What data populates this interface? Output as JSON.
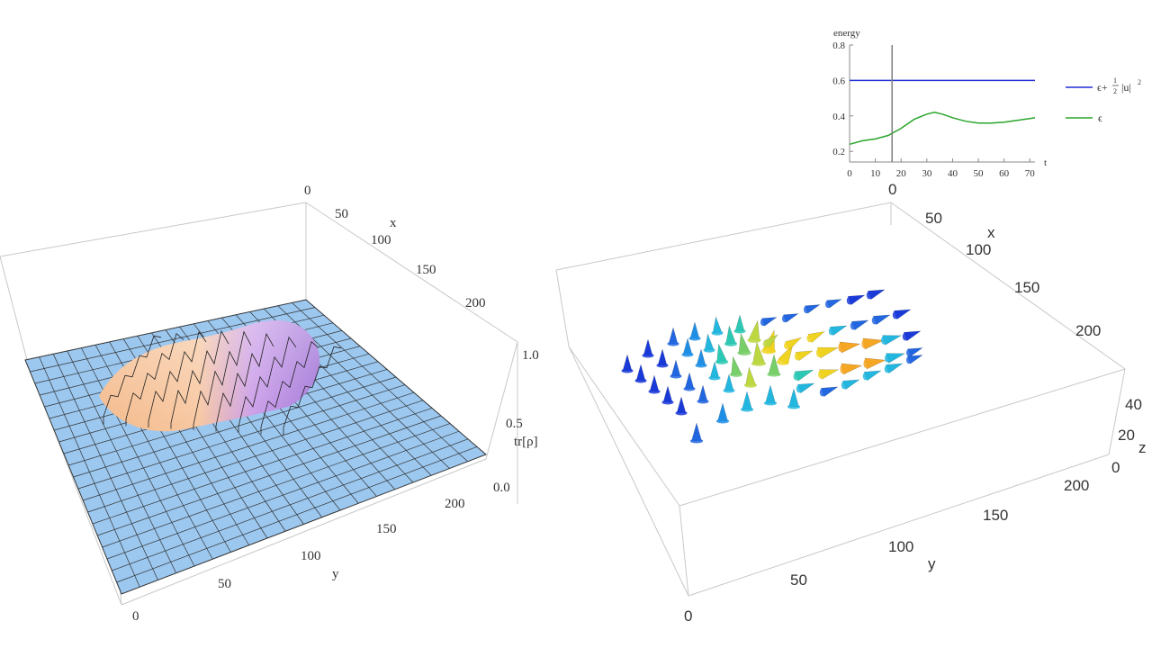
{
  "colors": {
    "total_energy": "#1f2bd6",
    "internal_energy": "#2aa52a",
    "time_marker": "#808080",
    "surface": "#9cc8f0",
    "box": "#c8c8c8"
  },
  "chart_data": [
    {
      "type": "line",
      "ylabel": "energy",
      "xlabel": "t",
      "xlim": [
        0,
        72
      ],
      "ylim": [
        0.14,
        0.8
      ],
      "x_ticks": [
        "0",
        "10",
        "20",
        "30",
        "40",
        "50",
        "60",
        "70"
      ],
      "y_ticks": [
        "0.2",
        "0.4",
        "0.6",
        "0.8"
      ],
      "marker_t": 16.5,
      "legend_position": "right",
      "series": [
        {
          "name": "ϵ+½|u|²",
          "legend_main": "ϵ+",
          "legend_frac": "1 2",
          "legend_tail": "|u|",
          "legend_sup": "2",
          "x": [
            0,
            72
          ],
          "values": [
            0.6,
            0.6
          ]
        },
        {
          "name": "ϵ",
          "x": [
            0,
            5,
            10,
            15,
            20,
            25,
            30,
            33,
            36,
            40,
            45,
            50,
            55,
            60,
            65,
            70,
            72
          ],
          "values": [
            0.24,
            0.26,
            0.27,
            0.29,
            0.33,
            0.38,
            0.41,
            0.42,
            0.41,
            0.39,
            0.37,
            0.36,
            0.36,
            0.365,
            0.375,
            0.385,
            0.39
          ]
        }
      ]
    },
    {
      "type": "surface",
      "zlabel": "tr[ρ]",
      "xlabel": "x",
      "ylabel": "y",
      "x_ticks": [
        "0",
        "50",
        "100",
        "150",
        "200"
      ],
      "y_ticks": [
        "0",
        "50",
        "100",
        "150",
        "200"
      ],
      "z_ticks": [
        "0.0",
        "0.5",
        "1.0"
      ],
      "zlim": [
        0,
        1
      ]
    },
    {
      "type": "vector3d",
      "xlabel": "x",
      "ylabel": "y",
      "zlabel": "z",
      "top_tick": "0",
      "x_ticks": [
        "50",
        "100",
        "150",
        "200"
      ],
      "y_ticks": [
        "0",
        "50",
        "100",
        "150",
        "200"
      ],
      "z_ticks": [
        "0",
        "20",
        "40"
      ]
    }
  ]
}
